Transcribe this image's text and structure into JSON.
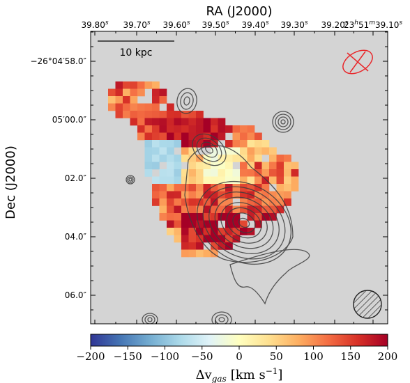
{
  "chart_data": {
    "type": "heatmap",
    "title": "",
    "top_axis_label": "RA (J2000)",
    "left_axis_label": "Dec (J2000)",
    "top_ticks": [
      {
        "label": "39.80",
        "sup": "s"
      },
      {
        "label": "39.70",
        "sup": "s"
      },
      {
        "label": "39.60",
        "sup": "s"
      },
      {
        "label": "39.50",
        "sup": "s"
      },
      {
        "label": "39.40",
        "sup": "s"
      },
      {
        "label": "39.30",
        "sup": "s"
      },
      {
        "label": "39.20",
        "sup": "s"
      },
      {
        "label": "23h51m39.10s",
        "sup": ""
      }
    ],
    "left_ticks": [
      "−26°04′58.0″",
      "05′00.0″",
      "02.0″",
      "04.0″",
      "06.0″"
    ],
    "scale_bar_label": "10 kpc",
    "colorbar": {
      "label": "Δv",
      "label_sub": "gas",
      "label_units": "[km s",
      "label_exp": "−1",
      "label_close": "]",
      "range": [
        -200,
        200
      ],
      "ticks": [
        "−200",
        "−150",
        "−100",
        "−50",
        "0",
        "50",
        "100",
        "150",
        "200"
      ],
      "colormap": "RdYlBu_r"
    },
    "pixel_map_grid": [
      "...........................",
      "...........................",
      "...........................",
      "...........................",
      "...........................",
      "...........................",
      "...........................",
      "...........................",
      "...........................",
      "...........................",
      "...........................",
      "...........................",
      "...........................",
      "...........................",
      "...........................",
      "...........................",
      "...........................",
      "...........................",
      "...........................",
      "...........................",
      "...........................",
      "...........................",
      "...........................",
      "...........................",
      "...........................",
      "...........................",
      "...........................",
      "..........................."
    ],
    "pixel_map_values": {
      "min": -200,
      "max": 200
    },
    "background_color": "#d4d4d4",
    "beam": {
      "position": "bottom-right",
      "hatched": true
    },
    "psf_marker": {
      "position": "top-right",
      "color": "#e8262a"
    }
  }
}
